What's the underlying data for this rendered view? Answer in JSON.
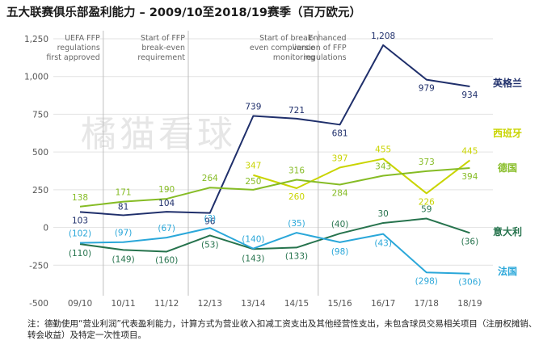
{
  "title": "五大联赛俱乐部盈利能力 – 2009/10至2018/19赛季（百万欧元）",
  "watermark": "橘猫看球",
  "note": "注：德勤使用“营业利润”代表盈利能力，计算方式为营业收入扣减工资支出及其他经营性支出，未包含球员交易相关项目（注册权摊销、转会收益）及特定一次性项目。",
  "chart_data": {
    "type": "line",
    "categories": [
      "09/10",
      "10/11",
      "11/12",
      "12/13",
      "13/14",
      "14/15",
      "15/16",
      "16/17",
      "17/18",
      "18/19"
    ],
    "ylim": [
      -500,
      1250
    ],
    "yticks": [
      -500,
      -250,
      0,
      250,
      500,
      750,
      1000,
      1250
    ],
    "ytick_labels": [
      "-500",
      "-250",
      "0",
      "250",
      "500",
      "750",
      "1,000",
      "1,250"
    ],
    "phases": [
      {
        "label": [
          "UEFA FFP",
          "regulations",
          "first approved"
        ],
        "from_category": "09/10"
      },
      {
        "label": [
          "Start of FFP",
          "break-even",
          "requirement"
        ],
        "from_category": "10/11"
      },
      {
        "label": [
          "Start of break-",
          "even compliance",
          "monitoring"
        ],
        "from_category": "12/13"
      },
      {
        "label": [
          "Enhanced",
          "version of FFP",
          "regulations"
        ],
        "from_category": "15/16"
      }
    ],
    "series": [
      {
        "name": "英格兰",
        "color": "#1f2f6b",
        "values": [
          103,
          81,
          104,
          96,
          739,
          721,
          681,
          1208,
          979,
          934
        ],
        "labels": [
          "103",
          "81",
          "104",
          "96",
          "739",
          "721",
          "681",
          "1,208",
          "979",
          "934"
        ]
      },
      {
        "name": "西班牙",
        "color": "#c9d400",
        "values": [
          null,
          null,
          null,
          null,
          347,
          260,
          397,
          455,
          226,
          445
        ],
        "labels": [
          "",
          "",
          "",
          "",
          "347",
          "260",
          "397",
          "455",
          "226",
          "445"
        ]
      },
      {
        "name": "德国",
        "color": "#86bc25",
        "values": [
          138,
          171,
          190,
          264,
          250,
          316,
          284,
          343,
          373,
          394
        ],
        "labels": [
          "138",
          "171",
          "190",
          "264",
          "250",
          "316",
          "284",
          "343",
          "373",
          "394"
        ]
      },
      {
        "name": "意大利",
        "color": "#26734d",
        "values": [
          -110,
          -149,
          -160,
          -53,
          -143,
          -133,
          -40,
          30,
          59,
          -36
        ],
        "labels": [
          "(110)",
          "(149)",
          "(160)",
          "(53)",
          "(143)",
          "(133)",
          "(40)",
          "30",
          "59",
          "(36)"
        ]
      },
      {
        "name": "法国",
        "color": "#2aa7d9",
        "values": [
          -102,
          -97,
          -67,
          -3,
          -140,
          -35,
          -98,
          -43,
          -298,
          -306
        ],
        "labels": [
          "(102)",
          "(97)",
          "(67)",
          "(3)",
          "(140)",
          "(35)",
          "(98)",
          "(43)",
          "(298)",
          "(306)"
        ]
      }
    ]
  }
}
